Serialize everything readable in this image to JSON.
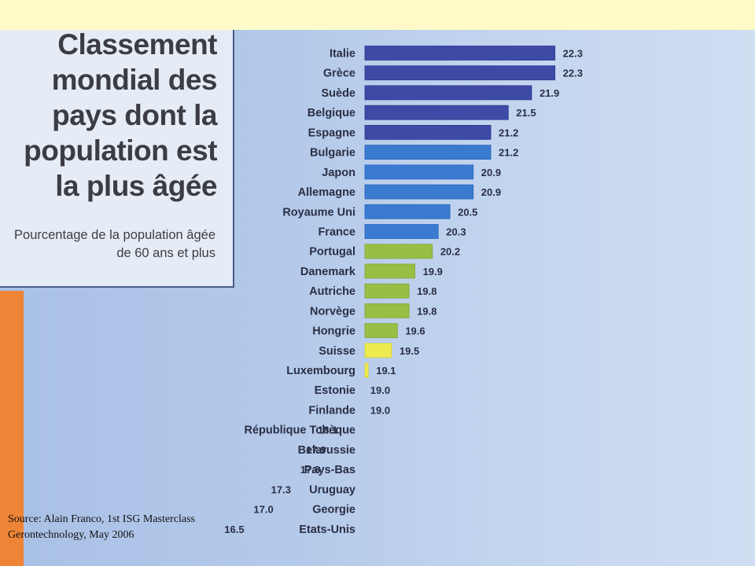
{
  "title": "Classement mondial des pays dont la population est la plus âgée",
  "subtitle": "Pourcentage de la population âgée de 60 ans et plus",
  "source": "Source:  Alain Franco, 1st ISG Masterclass Gerontechnology, May 2006",
  "colors": {
    "navy": "#3d4aa6",
    "blue": "#3a7ad0",
    "green": "#98be45",
    "yellow": "#eeeb50",
    "orange": "#ee8a40"
  },
  "chart_data": {
    "type": "bar",
    "orientation": "horizontal",
    "title": "Classement mondial des pays dont la population est la plus âgée",
    "subtitle": "Pourcentage de la population âgée de 60 ans et plus",
    "categories": [
      "Italie",
      "Grèce",
      "Suède",
      "Belgique",
      "Espagne",
      "Bulgarie",
      "Japon",
      "Allemagne",
      "Royaume Uni",
      "France",
      "Portugal",
      "Danemark",
      "Autriche",
      "Norvège",
      "Hongrie",
      "Suisse",
      "Luxembourg",
      "Estonie",
      "Finlande",
      "République Tchèque",
      "Belarussie",
      "Pays-Bas",
      "Uruguay",
      "Georgie",
      "Etats-Unis"
    ],
    "values": [
      22.3,
      22.3,
      21.9,
      21.5,
      21.2,
      21.2,
      20.9,
      20.9,
      20.5,
      20.3,
      20.2,
      19.9,
      19.8,
      19.8,
      19.6,
      19.5,
      19.1,
      19.0,
      19.0,
      18.1,
      17.9,
      17.8,
      17.3,
      17.0,
      16.5
    ],
    "value_labels": [
      "22.3",
      "22.3",
      "21.9",
      "21.5",
      "21.2",
      "21.2",
      "20.9",
      "20.9",
      "20.5",
      "20.3",
      "20.2",
      "19.9",
      "19.8",
      "19.8",
      "19.6",
      "19.5",
      "19.1",
      "19.0",
      "19.0",
      "18.1",
      "17.9",
      "17.8",
      "17.3",
      "17.0",
      "16.5"
    ],
    "bar_colors": [
      "navy",
      "navy",
      "navy",
      "navy",
      "navy",
      "blue",
      "blue",
      "blue",
      "blue",
      "blue",
      "green",
      "green",
      "green",
      "green",
      "green",
      "yellow",
      "yellow",
      "yellow",
      "yellow",
      "yellow",
      "orange",
      "orange",
      "orange",
      "orange",
      "orange"
    ],
    "grid": false,
    "legend": "none"
  }
}
